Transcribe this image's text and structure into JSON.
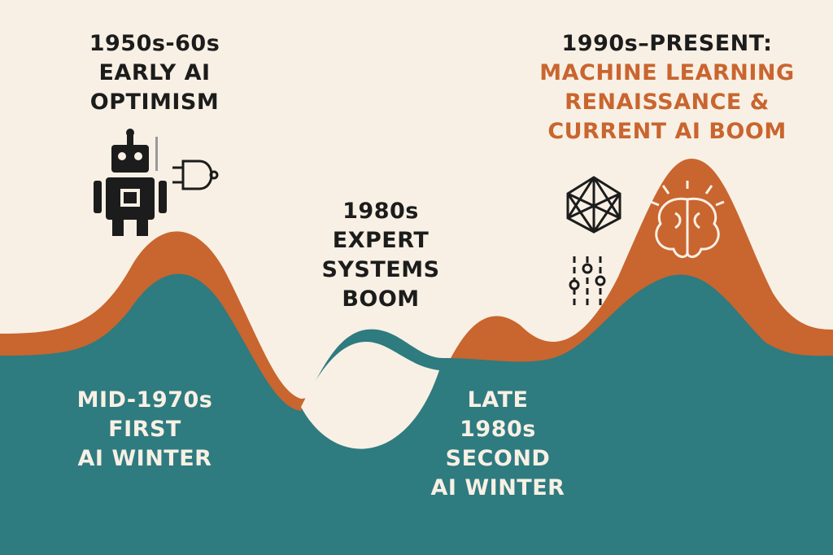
{
  "eras": [
    {
      "lines": [
        "1950s-60s",
        "EARLY AI",
        "OPTIMISM"
      ]
    },
    {
      "lines": [
        "MID-1970s",
        "FIRST",
        "AI WINTER"
      ]
    },
    {
      "lines": [
        "1980s",
        "EXPERT",
        "SYSTEMS",
        "BOOM"
      ]
    },
    {
      "lines": [
        "LATE",
        "1980s",
        "SECOND",
        "AI WINTER"
      ]
    },
    {
      "lines": [
        "1990s–PRESENT:",
        "MACHINE LEARNING",
        "RENAISSANCE &",
        "CURRENT AI BOOM"
      ]
    }
  ]
}
